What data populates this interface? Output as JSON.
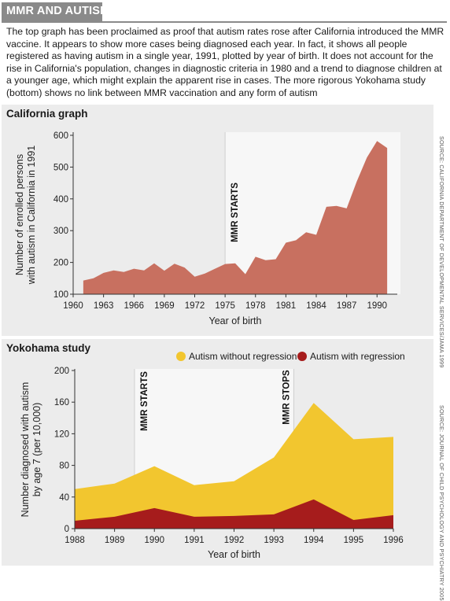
{
  "header": {
    "title": "MMR AND AUTISM"
  },
  "intro_text": "The top graph has been proclaimed as proof that autism rates rose after California introduced the MMR vaccine. It appears to show more cases being diagnosed each year. In fact, it shows all people registered as having autism in a single year, 1991, plotted by year of birth. It does not account for the rise in California's population, changes in diagnostic criteria in 1980 and a trend to diagnose children at a younger age, which might explain the apparent rise in cases. The more rigorous Yokohama study (bottom) shows no link between MMR vaccination and any form of autism",
  "colors": {
    "california_fill": "#c87060",
    "without_regression": "#f2c62f",
    "with_regression": "#a61c1c",
    "panel_bg": "#ececec",
    "mmr_shade": "#f7f7f7",
    "header_banner": "#8a8a8a"
  },
  "chart_data": [
    {
      "type": "area",
      "panel_label": "California graph",
      "annotation": "MMR STARTS",
      "annotation_x": 1975,
      "xlabel": "Year of birth",
      "ylabel_line1": "Number of enrolled persons",
      "ylabel_line2": "with autism in California in 1991",
      "xlim": [
        1960,
        1992
      ],
      "ylim": [
        100,
        600
      ],
      "x_ticks": [
        "1960",
        "1963",
        "1966",
        "1969",
        "1972",
        "1975",
        "1978",
        "1981",
        "1984",
        "1987",
        "1990"
      ],
      "y_ticks": [
        "100",
        "200",
        "300",
        "400",
        "500",
        "600"
      ],
      "grid": false,
      "source": "SOURCE: CALIFORNIA DEPARTMENT OF DEVELOPMENTAL SERVICES/JAMA 1999",
      "x": [
        1961,
        1962,
        1963,
        1964,
        1965,
        1966,
        1967,
        1968,
        1969,
        1970,
        1971,
        1972,
        1973,
        1974,
        1975,
        1976,
        1977,
        1978,
        1979,
        1980,
        1981,
        1982,
        1983,
        1984,
        1985,
        1986,
        1987,
        1988,
        1989,
        1990,
        1991
      ],
      "values": [
        143,
        150,
        167,
        175,
        170,
        180,
        175,
        197,
        174,
        196,
        184,
        155,
        165,
        180,
        195,
        197,
        163,
        218,
        207,
        210,
        262,
        270,
        295,
        287,
        375,
        378,
        370,
        455,
        530,
        582,
        560
      ]
    },
    {
      "type": "area",
      "panel_label": "Yokohama study",
      "annotations": [
        {
          "label": "MMR STARTS",
          "x": 1989.5
        },
        {
          "label": "MMR STOPS",
          "x": 1993.5
        }
      ],
      "xlabel": "Year of birth",
      "ylabel_line1": "Number diagnosed with autism",
      "ylabel_line2": "by age 7 (per 10,000)",
      "xlim": [
        1988,
        1996
      ],
      "ylim": [
        0,
        200
      ],
      "x_ticks": [
        "1988",
        "1989",
        "1990",
        "1991",
        "1992",
        "1993",
        "1994",
        "1995",
        "1996"
      ],
      "y_ticks": [
        "0",
        "40",
        "80",
        "120",
        "160",
        "200"
      ],
      "grid": false,
      "legend_position": "top",
      "source": "SOURCE: JOURNAL OF CHILD PSYCHOLOGY AND PSYCHIATRY 2005",
      "x": [
        1988,
        1989,
        1990,
        1991,
        1992,
        1993,
        1994,
        1995,
        1996
      ],
      "series": [
        {
          "name": "Autism without regression",
          "values": [
            50,
            57,
            79,
            55,
            60,
            90,
            159,
            113,
            116
          ]
        },
        {
          "name": "Autism with regression",
          "values": [
            10,
            15,
            26,
            15,
            16,
            18,
            37,
            11,
            17
          ]
        }
      ]
    }
  ]
}
